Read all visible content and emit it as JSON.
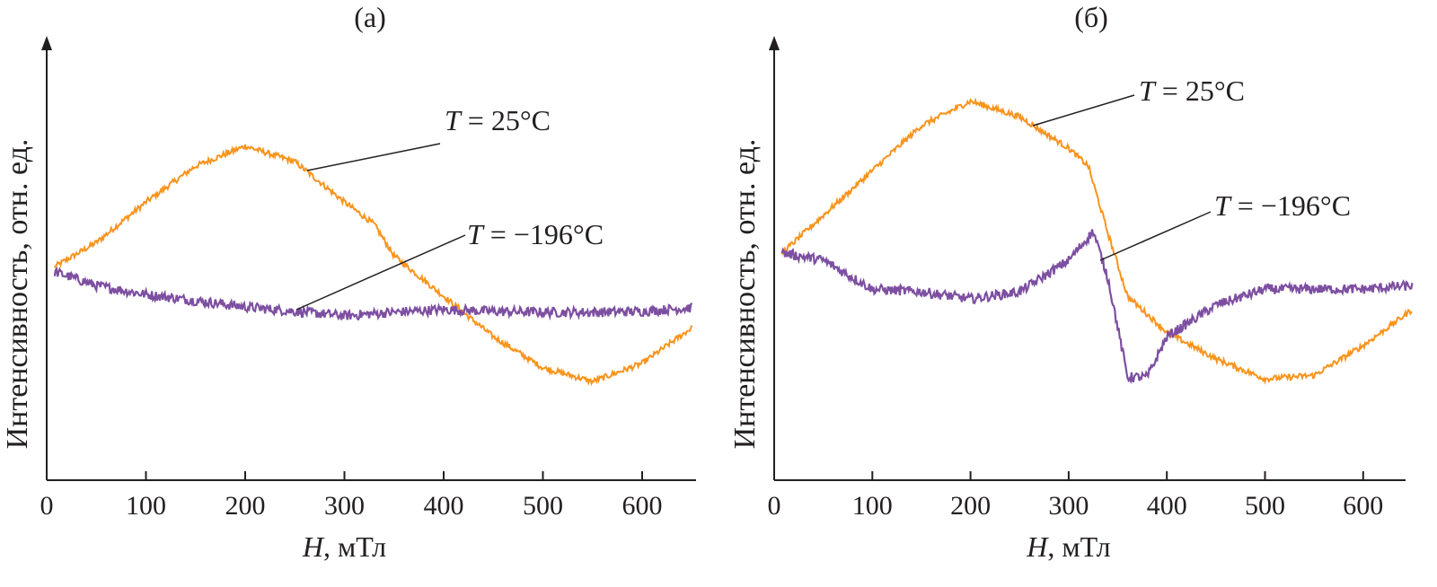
{
  "chart_data": [
    {
      "type": "line",
      "title": "(а)",
      "xlabel_var": "H",
      "xlabel_unit": ", мТл",
      "ylabel": "Интенсивность, отн. ед.",
      "xlim": [
        0,
        650
      ],
      "xticks": [
        0,
        100,
        200,
        300,
        400,
        500,
        600
      ],
      "ylim": [
        0,
        100
      ],
      "grid": false,
      "series": [
        {
          "name": "T = 25°C",
          "label_var": "T",
          "label_rest": " = 25°C",
          "color": "#f7941d",
          "x": [
            0,
            50,
            100,
            150,
            200,
            250,
            300,
            330,
            350,
            400,
            450,
            500,
            550,
            600,
            650
          ],
          "y": [
            47,
            53.5,
            62.6,
            70.7,
            75.2,
            71.7,
            62.6,
            57.6,
            50.5,
            41.4,
            32.3,
            25.3,
            22.2,
            26.3,
            34.3
          ]
        },
        {
          "name": "T = −196°C",
          "label_var": "T",
          "label_rest": " = −196°C",
          "color": "#7d4fa1",
          "x": [
            0,
            50,
            100,
            150,
            200,
            250,
            300,
            350,
            400,
            450,
            500,
            550,
            600,
            650
          ],
          "y": [
            47.5,
            43.8,
            41.8,
            40.4,
            39,
            38,
            37,
            37.8,
            38.4,
            38,
            37.8,
            37.8,
            38,
            38.8
          ]
        }
      ]
    },
    {
      "type": "line",
      "title": "(б)",
      "xlabel_var": "H",
      "xlabel_unit": ", мТл",
      "ylabel": "Интенсивность, отн. ед.",
      "xlim": [
        0,
        650
      ],
      "xticks": [
        0,
        100,
        200,
        300,
        400,
        500,
        600
      ],
      "ylim": [
        0,
        100
      ],
      "grid": false,
      "series": [
        {
          "name": "T = 25°C",
          "label_var": "T",
          "label_rest": " = 25°C",
          "color": "#f7941d",
          "x": [
            0,
            50,
            100,
            150,
            200,
            250,
            300,
            320,
            340,
            360,
            400,
            450,
            500,
            550,
            600,
            650
          ],
          "y": [
            49.5,
            59.6,
            69.7,
            79.8,
            85.3,
            81.8,
            74.7,
            70.7,
            55.6,
            41.4,
            33.3,
            27.3,
            22.8,
            23.6,
            30.3,
            38.4
          ]
        },
        {
          "name": "T = −196°C",
          "label_var": "T",
          "label_rest": " = −196°C",
          "color": "#7d4fa1",
          "x": [
            0,
            50,
            100,
            150,
            200,
            250,
            300,
            325,
            340,
            360,
            380,
            400,
            450,
            500,
            550,
            600,
            650
          ],
          "y": [
            51.5,
            49.5,
            43,
            42.4,
            40.8,
            42.4,
            49.5,
            56,
            45.5,
            23.2,
            23.2,
            32.3,
            39.4,
            43,
            43,
            43,
            43.8
          ]
        }
      ]
    }
  ]
}
